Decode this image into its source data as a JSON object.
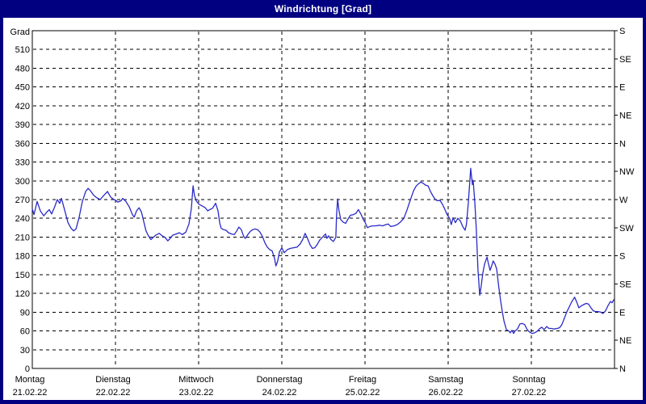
{
  "window": {
    "title": "Windrichtung [Grad]"
  },
  "colors": {
    "frame": "#000080",
    "title_text": "#ffffff",
    "plot_background": "#ffffff",
    "grid": "#000000",
    "axis_text": "#000000",
    "line": "#2a2ac8"
  },
  "chart_data": {
    "type": "line",
    "title": "Windrichtung [Grad]",
    "unit_label": "Grad",
    "grid": "dashed",
    "legend": "none",
    "x_axis": {
      "hours_total": 168,
      "day_width_hours": 24,
      "days": [
        {
          "name": "Montag",
          "date": "21.02.22"
        },
        {
          "name": "Dienstag",
          "date": "22.02.22"
        },
        {
          "name": "Mittwoch",
          "date": "23.02.22"
        },
        {
          "name": "Donnerstag",
          "date": "24.02.22"
        },
        {
          "name": "Freitag",
          "date": "25.02.22"
        },
        {
          "name": "Samstag",
          "date": "26.02.22"
        },
        {
          "name": "Sonntag",
          "date": "27.02.22"
        }
      ]
    },
    "y_axis_left": {
      "min": 0,
      "max": 540,
      "grid_step": 30,
      "label_step": 30,
      "first_label": 0,
      "last_label": 510
    },
    "y_axis_right": {
      "tick_step": 45,
      "labels_bottom_to_top": [
        "N",
        "NE",
        "E",
        "SE",
        "S",
        "SW",
        "W",
        "NW",
        "N",
        "NE",
        "E",
        "SE",
        "S"
      ]
    },
    "series": [
      {
        "name": "Windrichtung",
        "color": "#2a2ac8",
        "points": [
          [
            0,
            255
          ],
          [
            0.5,
            246
          ],
          [
            1.4,
            267
          ],
          [
            2.3,
            252
          ],
          [
            3.3,
            244
          ],
          [
            4.2,
            250
          ],
          [
            4.9,
            254
          ],
          [
            5.6,
            247
          ],
          [
            6.5,
            259
          ],
          [
            7.2,
            270
          ],
          [
            7.9,
            264
          ],
          [
            8.4,
            272
          ],
          [
            9.3,
            254
          ],
          [
            10.3,
            233
          ],
          [
            11.2,
            224
          ],
          [
            11.9,
            220
          ],
          [
            12.6,
            223
          ],
          [
            13.5,
            241
          ],
          [
            14.4,
            266
          ],
          [
            15.4,
            283
          ],
          [
            16.1,
            288
          ],
          [
            16.8,
            284
          ],
          [
            17.7,
            277
          ],
          [
            18.6,
            273
          ],
          [
            19.6,
            270
          ],
          [
            20.5,
            276
          ],
          [
            21.7,
            283
          ],
          [
            22.6,
            274
          ],
          [
            23.3,
            271
          ],
          [
            24,
            269
          ],
          [
            24.7,
            266
          ],
          [
            25.6,
            268
          ],
          [
            26.1,
            272
          ],
          [
            27,
            267
          ],
          [
            28,
            258
          ],
          [
            28.9,
            246
          ],
          [
            29.4,
            242
          ],
          [
            30.1,
            252
          ],
          [
            30.8,
            257
          ],
          [
            31.5,
            250
          ],
          [
            32.1,
            236
          ],
          [
            32.8,
            220
          ],
          [
            33.5,
            212
          ],
          [
            34.2,
            206
          ],
          [
            35,
            210
          ],
          [
            35.6,
            213
          ],
          [
            36.6,
            216
          ],
          [
            37.5,
            212
          ],
          [
            38.4,
            209
          ],
          [
            39.1,
            204
          ],
          [
            39.8,
            208
          ],
          [
            40.5,
            213
          ],
          [
            41.5,
            215
          ],
          [
            42.4,
            217
          ],
          [
            43.3,
            214
          ],
          [
            44.3,
            218
          ],
          [
            45.2,
            231
          ],
          [
            45.9,
            256
          ],
          [
            46.4,
            292
          ],
          [
            46.8,
            277
          ],
          [
            47.3,
            268
          ],
          [
            48,
            263
          ],
          [
            48.9,
            260
          ],
          [
            49.9,
            257
          ],
          [
            50.6,
            252
          ],
          [
            51.2,
            254
          ],
          [
            52,
            256
          ],
          [
            52.9,
            264
          ],
          [
            53.6,
            252
          ],
          [
            54.1,
            232
          ],
          [
            54.5,
            224
          ],
          [
            55.2,
            222
          ],
          [
            55.9,
            221
          ],
          [
            56.6,
            217
          ],
          [
            57.5,
            215
          ],
          [
            58.3,
            214
          ],
          [
            59,
            220
          ],
          [
            59.6,
            226
          ],
          [
            60.3,
            222
          ],
          [
            61,
            211
          ],
          [
            61.5,
            208
          ],
          [
            62.2,
            214
          ],
          [
            62.9,
            219
          ],
          [
            63.6,
            222
          ],
          [
            64.3,
            223
          ],
          [
            65,
            222
          ],
          [
            65.7,
            218
          ],
          [
            66.4,
            211
          ],
          [
            67.1,
            201
          ],
          [
            67.8,
            194
          ],
          [
            68.5,
            190
          ],
          [
            69.2,
            188
          ],
          [
            69.9,
            176
          ],
          [
            70.3,
            164
          ],
          [
            70.8,
            171
          ],
          [
            71.3,
            186
          ],
          [
            72,
            193
          ],
          [
            72.7,
            185
          ],
          [
            73.6,
            190
          ],
          [
            74.5,
            192
          ],
          [
            75.4,
            193
          ],
          [
            76.4,
            194
          ],
          [
            77.3,
            199
          ],
          [
            78,
            206
          ],
          [
            78.7,
            216
          ],
          [
            79.4,
            208
          ],
          [
            80.1,
            198
          ],
          [
            80.8,
            192
          ],
          [
            81.5,
            193
          ],
          [
            82.2,
            198
          ],
          [
            82.9,
            205
          ],
          [
            83.9,
            211
          ],
          [
            84.6,
            215
          ],
          [
            85,
            208
          ],
          [
            85.5,
            212
          ],
          [
            86.2,
            206
          ],
          [
            86.9,
            203
          ],
          [
            87.6,
            210
          ],
          [
            87.8,
            245
          ],
          [
            88.1,
            271
          ],
          [
            88.5,
            252
          ],
          [
            89,
            238
          ],
          [
            89.7,
            234
          ],
          [
            90.4,
            232
          ],
          [
            91.1,
            239
          ],
          [
            91.8,
            245
          ],
          [
            92.7,
            246
          ],
          [
            93.4,
            248
          ],
          [
            94.1,
            254
          ],
          [
            94.8,
            247
          ],
          [
            95.5,
            238
          ],
          [
            96,
            234
          ],
          [
            96.7,
            225
          ],
          [
            97.4,
            227
          ],
          [
            98.3,
            228
          ],
          [
            99.2,
            228
          ],
          [
            100.2,
            229
          ],
          [
            101.1,
            228
          ],
          [
            102,
            230
          ],
          [
            102.7,
            231
          ],
          [
            103.4,
            227
          ],
          [
            104.4,
            228
          ],
          [
            105.3,
            230
          ],
          [
            106.2,
            234
          ],
          [
            107.2,
            240
          ],
          [
            108.1,
            253
          ],
          [
            109,
            268
          ],
          [
            110,
            284
          ],
          [
            110.7,
            291
          ],
          [
            111.4,
            295
          ],
          [
            112.1,
            298
          ],
          [
            112.8,
            296
          ],
          [
            113.5,
            293
          ],
          [
            114.2,
            292
          ],
          [
            114.9,
            283
          ],
          [
            115.6,
            276
          ],
          [
            116.3,
            270
          ],
          [
            117,
            268
          ],
          [
            117.6,
            269
          ],
          [
            118.3,
            263
          ],
          [
            119,
            255
          ],
          [
            119.7,
            246
          ],
          [
            120.4,
            240
          ],
          [
            120.9,
            230
          ],
          [
            121.4,
            241
          ],
          [
            122.1,
            233
          ],
          [
            122.8,
            240
          ],
          [
            123.5,
            236
          ],
          [
            124.2,
            227
          ],
          [
            124.9,
            221
          ],
          [
            125.3,
            231
          ],
          [
            125.8,
            264
          ],
          [
            126.3,
            302
          ],
          [
            126.5,
            320
          ],
          [
            127,
            294
          ],
          [
            127.2,
            301
          ],
          [
            127.7,
            266
          ],
          [
            128.1,
            224
          ],
          [
            128.6,
            158
          ],
          [
            129.1,
            117
          ],
          [
            129.5,
            131
          ],
          [
            130,
            152
          ],
          [
            130.5,
            167
          ],
          [
            131.2,
            178
          ],
          [
            131.6,
            168
          ],
          [
            132.1,
            157
          ],
          [
            132.6,
            165
          ],
          [
            133,
            172
          ],
          [
            133.5,
            167
          ],
          [
            134,
            159
          ],
          [
            134.6,
            130
          ],
          [
            135.1,
            110
          ],
          [
            135.6,
            92
          ],
          [
            136.1,
            76
          ],
          [
            136.8,
            62
          ],
          [
            137.5,
            60
          ],
          [
            137.9,
            57
          ],
          [
            138.4,
            61
          ],
          [
            138.9,
            56
          ],
          [
            139.3,
            60
          ],
          [
            140,
            63
          ],
          [
            140.7,
            71
          ],
          [
            141.4,
            72
          ],
          [
            142.1,
            70
          ],
          [
            142.8,
            62
          ],
          [
            143.5,
            58
          ],
          [
            144.2,
            56
          ],
          [
            144.9,
            57
          ],
          [
            145.6,
            59
          ],
          [
            146.3,
            63
          ],
          [
            147,
            66
          ],
          [
            147.7,
            62
          ],
          [
            148.4,
            67
          ],
          [
            149.1,
            64
          ],
          [
            149.8,
            64
          ],
          [
            150.5,
            63
          ],
          [
            151.4,
            64
          ],
          [
            152.1,
            65
          ],
          [
            152.8,
            70
          ],
          [
            153.5,
            80
          ],
          [
            154.2,
            90
          ],
          [
            154.9,
            98
          ],
          [
            155.6,
            106
          ],
          [
            156.5,
            114
          ],
          [
            157.2,
            105
          ],
          [
            157.7,
            97
          ],
          [
            158.4,
            100
          ],
          [
            159.1,
            102
          ],
          [
            159.8,
            104
          ],
          [
            160.5,
            103
          ],
          [
            161.2,
            97
          ],
          [
            161.9,
            92
          ],
          [
            162.6,
            91
          ],
          [
            163.3,
            91
          ],
          [
            164,
            90
          ],
          [
            164.7,
            88
          ],
          [
            165.4,
            92
          ],
          [
            166.1,
            100
          ],
          [
            166.8,
            107
          ],
          [
            167.3,
            105
          ],
          [
            167.8,
            110
          ]
        ]
      }
    ]
  }
}
